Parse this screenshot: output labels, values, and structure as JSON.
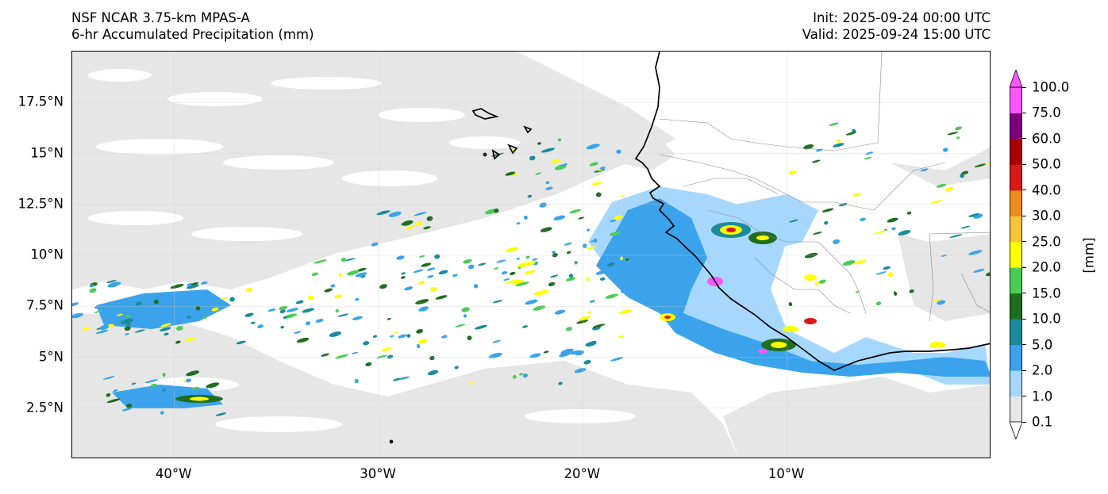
{
  "header": {
    "title_line1": "NSF NCAR 3.75-km MPAS-A",
    "title_line2": "6-hr Accumulated Precipitation (mm)",
    "init_label": "Init: 2025-09-24 00:00 UTC",
    "valid_label": "Valid: 2025-09-24 15:00 UTC"
  },
  "map": {
    "lon_range": [
      -45,
      0
    ],
    "lat_range": [
      0,
      20
    ],
    "lat_ticks": [
      {
        "value": 17.5,
        "label": "17.5°N"
      },
      {
        "value": 15,
        "label": "15°N"
      },
      {
        "value": 12.5,
        "label": "12.5°N"
      },
      {
        "value": 10,
        "label": "10°N"
      },
      {
        "value": 7.5,
        "label": "7.5°N"
      },
      {
        "value": 5,
        "label": "5°N"
      },
      {
        "value": 2.5,
        "label": "2.5°N"
      }
    ],
    "lon_ticks": [
      {
        "value": -40,
        "label": "40°W"
      },
      {
        "value": -30,
        "label": "30°W"
      },
      {
        "value": -20,
        "label": "20°W"
      },
      {
        "value": -10,
        "label": "10°W"
      }
    ],
    "gridlines": true
  },
  "colorbar": {
    "title": "[mm]",
    "levels": [
      "0.1",
      "1.0",
      "2.0",
      "5.0",
      "10.0",
      "15.0",
      "20.0",
      "25.0",
      "30.0",
      "40.0",
      "50.0",
      "60.0",
      "75.0",
      "100.0"
    ],
    "colors": [
      "#e6e6e6",
      "#a6d8ff",
      "#3aa3ec",
      "#1a8b9c",
      "#1f6e1f",
      "#4ccc55",
      "#ffff00",
      "#f5c63a",
      "#ee8c1e",
      "#d91818",
      "#a80000",
      "#7b007b",
      "#ff55ff"
    ],
    "extend": "both"
  }
}
